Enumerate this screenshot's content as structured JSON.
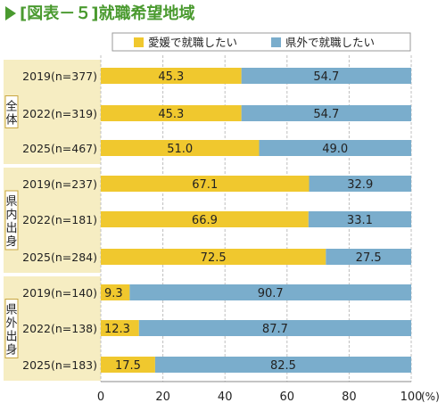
{
  "title": "[図表－５]就職希望地域",
  "colors": {
    "ehime": "#f0c82e",
    "outside": "#7aadcc",
    "group_bg": "#f6edc2",
    "grid": "#bfbfbf"
  },
  "chart_data": {
    "type": "bar",
    "orientation": "horizontal-stacked-percent",
    "legend_placement": "top-right",
    "series": [
      {
        "name": "愛媛で就職したい",
        "values": [
          45.3,
          45.3,
          51.0,
          67.1,
          66.9,
          72.5,
          9.3,
          12.3,
          17.5
        ]
      },
      {
        "name": "県外で就職したい",
        "values": [
          54.7,
          54.7,
          49.0,
          32.9,
          33.1,
          27.5,
          90.7,
          87.7,
          82.5
        ]
      }
    ],
    "rows": [
      {
        "group": "全体",
        "label": "2019(n=377)"
      },
      {
        "group": "全体",
        "label": "2022(n=319)"
      },
      {
        "group": "全体",
        "label": "2025(n=467)"
      },
      {
        "group": "県内出身",
        "label": "2019(n=237)"
      },
      {
        "group": "県内出身",
        "label": "2022(n=181)"
      },
      {
        "group": "県内出身",
        "label": "2025(n=284)"
      },
      {
        "group": "県外出身",
        "label": "2019(n=140)"
      },
      {
        "group": "県外出身",
        "label": "2022(n=138)"
      },
      {
        "group": "県外出身",
        "label": "2025(n=183)"
      }
    ],
    "groups": [
      "全体",
      "県内出身",
      "県外出身"
    ],
    "xlim": [
      0,
      100
    ],
    "x_ticks": [
      {
        "value": 0,
        "label": "0"
      },
      {
        "value": 20,
        "label": "20"
      },
      {
        "value": 40,
        "label": "40"
      },
      {
        "value": 60,
        "label": "60"
      },
      {
        "value": 80,
        "label": "80"
      },
      {
        "value": 100,
        "label": "100"
      }
    ],
    "x_unit": "(%)",
    "grid": true
  }
}
